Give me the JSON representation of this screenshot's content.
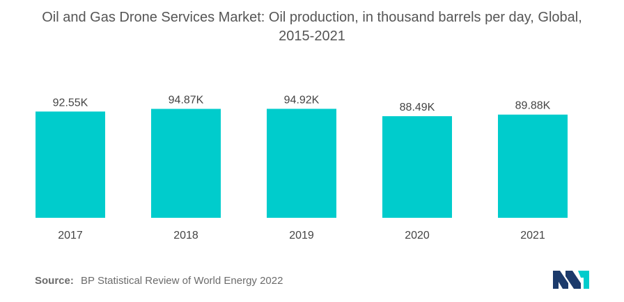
{
  "header": {
    "title_line1": "Oil and Gas Drone Services Market: Oil production, in thousand barrels per day, Global,",
    "title_line2": "2015-2021"
  },
  "footer": {
    "source_label": "Source:",
    "source_text": "BP Statistical Review of World Energy 2022"
  },
  "colors": {
    "bar": "#00CCCC",
    "text": "#444444",
    "logo_left": "#1b3a6b",
    "logo_right": "#00CCCC"
  },
  "chart_data": {
    "type": "bar",
    "title": "Oil and Gas Drone Services Market: Oil production, in thousand barrels per day, Global, 2015-2021",
    "categories": [
      "2017",
      "2018",
      "2019",
      "2020",
      "2021"
    ],
    "values": [
      92.55,
      94.87,
      94.92,
      88.49,
      89.88
    ],
    "data_labels": [
      "92.55K",
      "94.87K",
      "94.92K",
      "88.49K",
      "89.88K"
    ],
    "unit_suffix": "K",
    "xlabel": "",
    "ylabel": "",
    "ylim": [
      0,
      100
    ],
    "grid": false,
    "legend": "none"
  }
}
